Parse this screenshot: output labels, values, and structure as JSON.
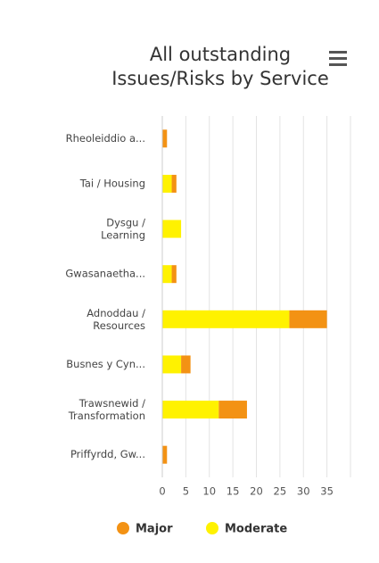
{
  "chart_data": {
    "type": "stacked_barh",
    "title": [
      "All outstanding",
      "Issues/Risks by Service"
    ],
    "categories": [
      "Rheoleiddio a...",
      "Tai / Housing",
      "Dysgu /\nLearning",
      "Gwasanaetha...",
      "Adnoddau /\nResources",
      "Busnes y Cyn...",
      "Trawsnewid /\nTransformation",
      "Priffyrdd, Gw..."
    ],
    "series": [
      {
        "name": "Moderate",
        "color": "#fff200",
        "values": [
          0,
          2,
          4,
          2,
          27,
          4,
          12,
          0
        ]
      },
      {
        "name": "Major",
        "color": "#f39214",
        "values": [
          1,
          1,
          0,
          1,
          8,
          2,
          6,
          1
        ]
      }
    ],
    "legend_order": [
      "Major",
      "Moderate"
    ],
    "xlim": [
      0,
      40
    ],
    "xticks": [
      0,
      5,
      10,
      15,
      20,
      25,
      30,
      35
    ],
    "grid": true,
    "legend": "bottom"
  }
}
